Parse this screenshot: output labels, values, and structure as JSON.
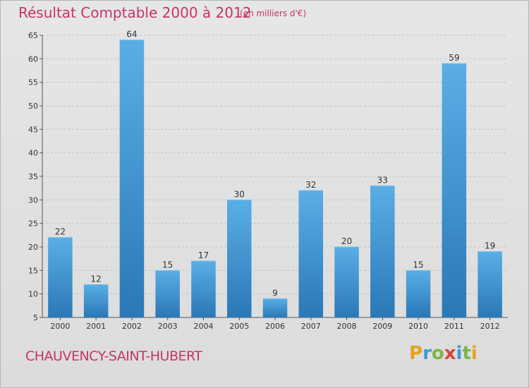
{
  "title": "Résultat Comptable 2000 à 2012",
  "subtitle": "(en milliers d'€)",
  "commune": "CHAUVENCY-SAINT-HUBERT",
  "logo": {
    "letters": [
      "P",
      "r",
      "o",
      "x",
      "i",
      "t",
      "i"
    ],
    "colors": [
      "#e4a31d",
      "#3a9ad9",
      "#7ab648",
      "#d9453a",
      "#3a9ad9",
      "#7ab648",
      "#e4a31d"
    ]
  },
  "colors": {
    "bar_light": "#5aaee6",
    "bar_dark": "#2a78b7",
    "accent": "#c8336a",
    "grid": "#c4c4c4"
  },
  "chart_data": {
    "type": "bar",
    "categories": [
      "2000",
      "2001",
      "2002",
      "2003",
      "2004",
      "2005",
      "2006",
      "2007",
      "2008",
      "2009",
      "2010",
      "2011",
      "2012"
    ],
    "values": [
      22,
      12,
      64,
      15,
      17,
      30,
      9,
      32,
      20,
      33,
      15,
      59,
      19
    ],
    "ylim": [
      5,
      65
    ],
    "yticks": [
      5,
      10,
      15,
      20,
      25,
      30,
      35,
      40,
      45,
      50,
      55,
      60,
      65
    ],
    "grid": true,
    "xlabel": "",
    "ylabel": ""
  }
}
